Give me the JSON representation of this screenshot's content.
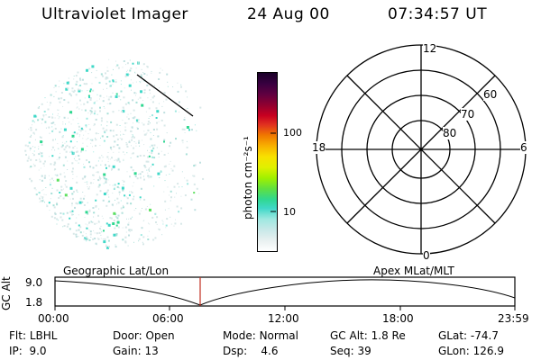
{
  "header": {
    "title": "Ultraviolet Imager",
    "date": "24 Aug 00",
    "time": "07:34:57 UT"
  },
  "colorbar": {
    "label": "photon cm⁻²s⁻¹",
    "tick_100": "100",
    "tick_10": "10",
    "colors": [
      "#ffffff",
      "#e8f0f0",
      "#c8e8e8",
      "#9ee8e0",
      "#40d8c8",
      "#30d890",
      "#60e040",
      "#a0f000",
      "#e0f000",
      "#f8e000",
      "#f8b000",
      "#f07800",
      "#e03020",
      "#c80020",
      "#900030",
      "#600040",
      "#380040",
      "#1a0028"
    ]
  },
  "polar": {
    "mlt_labels": {
      "top": "12",
      "bottom": "0",
      "left": "18",
      "right": "6"
    },
    "lat_labels": [
      "60",
      "70",
      "80"
    ]
  },
  "alt_panel": {
    "left_title": "Geographic Lat/Lon",
    "right_title": "Apex MLat/MLT",
    "y_title": "GC Alt",
    "y_top": "9.0",
    "y_bottom": "1.8",
    "x_ticks": [
      "00:00",
      "06:00",
      "12:00",
      "18:00",
      "23:59"
    ],
    "marker_color": "#c03020"
  },
  "info": {
    "filter": {
      "label": "Flt:",
      "value": "LBHL"
    },
    "door": {
      "label": "Door:",
      "value": "Open"
    },
    "mode": {
      "label": "Mode:",
      "value": "Normal"
    },
    "gc_alt": {
      "label": "GC Alt:",
      "value": "1.8 Re"
    },
    "glat": {
      "label": "GLat:",
      "value": "-74.7"
    },
    "ip": {
      "label": "IP:",
      "value": "9.0"
    },
    "gain": {
      "label": "Gain:",
      "value": "13"
    },
    "dsp": {
      "label": "Dsp:",
      "value": "4.6"
    },
    "seq": {
      "label": "Seq:",
      "value": "39"
    },
    "glon": {
      "label": "GLon:",
      "value": "126.9"
    }
  }
}
